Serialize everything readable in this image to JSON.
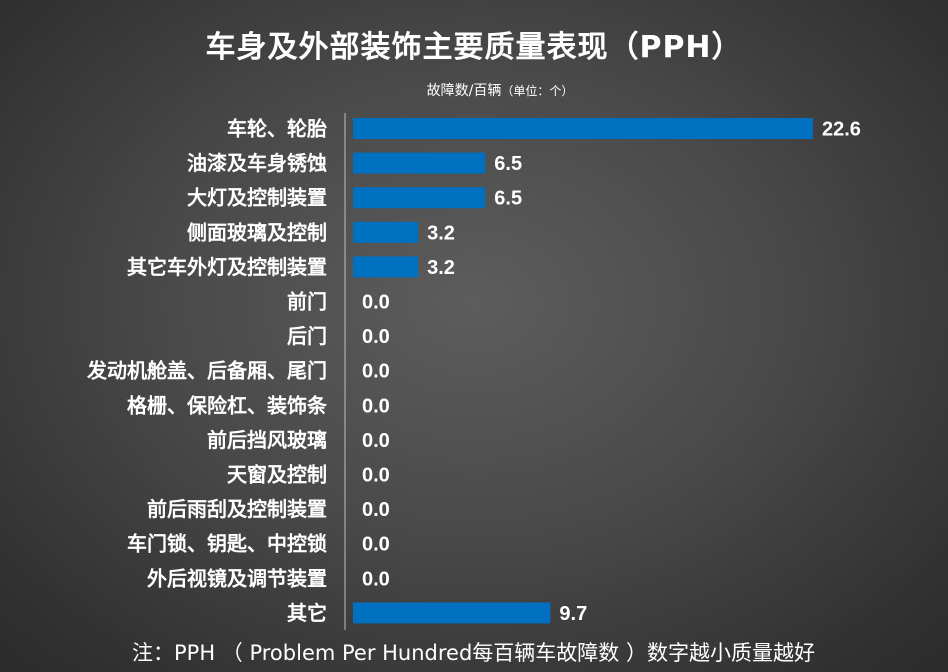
{
  "chart_data": {
    "type": "bar",
    "orientation": "horizontal",
    "title": "车身及外部装饰主要质量表现（PPH）",
    "unit_label": "故障数/百辆",
    "unit_detail": "（单位：个）",
    "categories": [
      "车轮、轮胎",
      "油漆及车身锈蚀",
      "大灯及控制装置",
      "侧面玻璃及控制",
      "其它车外灯及控制装置",
      "前门",
      "后门",
      "发动机舱盖、后备厢、尾门",
      "格栅、保险杠、装饰条",
      "前后挡风玻璃",
      "天窗及控制",
      "前后雨刮及控制装置",
      "车门锁、钥匙、中控锁",
      "外后视镜及调节装置",
      "其它"
    ],
    "values": [
      22.6,
      6.5,
      6.5,
      3.2,
      3.2,
      0.0,
      0.0,
      0.0,
      0.0,
      0.0,
      0.0,
      0.0,
      0.0,
      0.0,
      9.7
    ],
    "value_labels": [
      "22.6",
      "6.5",
      "6.5",
      "3.2",
      "3.2",
      "0.0",
      "0.0",
      "0.0",
      "0.0",
      "0.0",
      "0.0",
      "0.0",
      "0.0",
      "0.0",
      "9.7"
    ],
    "xlim": [
      0,
      22.6
    ],
    "grid": false,
    "bar_color": "#0070c0",
    "footnote": "注：PPH （ Problem Per Hundred每百辆车故障数 ）数字越小质量越好"
  }
}
